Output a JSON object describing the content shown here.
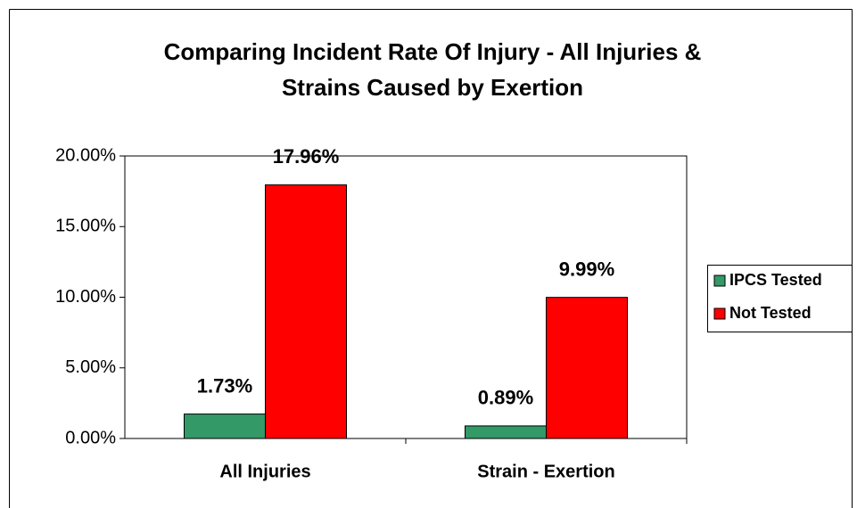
{
  "chart_data": {
    "type": "bar",
    "title": [
      "Comparing Incident Rate Of Injury - All Injuries &",
      "Strains Caused by Exertion"
    ],
    "categories": [
      "All Injuries",
      "Strain - Exertion"
    ],
    "series": [
      {
        "name": "IPCS Tested",
        "color": "#339966",
        "values": [
          1.73,
          0.89
        ],
        "value_labels": [
          "1.73%",
          "0.89%"
        ]
      },
      {
        "name": "Not Tested",
        "color": "#ff0000",
        "values": [
          17.96,
          9.99
        ],
        "value_labels": [
          "17.96%",
          "9.99%"
        ]
      }
    ],
    "ylim": [
      0,
      20
    ],
    "yticks": [
      {
        "value": 0,
        "label": "0.00%"
      },
      {
        "value": 5,
        "label": "5.00%"
      },
      {
        "value": 10,
        "label": "10.00%"
      },
      {
        "value": 15,
        "label": "15.00%"
      },
      {
        "value": 20,
        "label": "20.00%"
      }
    ],
    "legend": "right"
  }
}
